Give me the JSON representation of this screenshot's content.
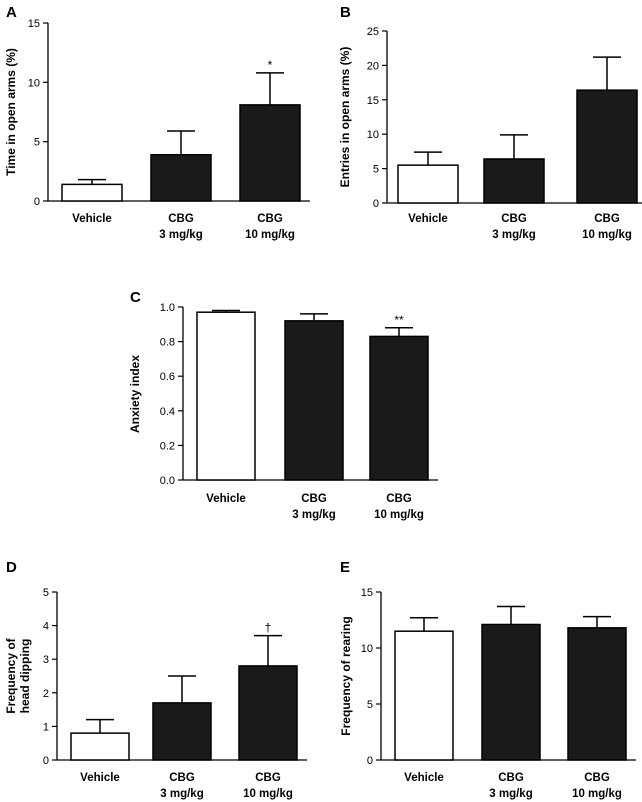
{
  "colors": {
    "filled": "#1a1a1a",
    "open": "#ffffff",
    "stroke": "#000000"
  },
  "chart_data": [
    {
      "panel_label": "A",
      "type": "bar",
      "title": "",
      "xlabel": "",
      "ylabel": "Time in open arms (%)",
      "categories": [
        [
          "Vehicle"
        ],
        [
          "CBG",
          "3 mg/kg"
        ],
        [
          "CBG",
          "10 mg/kg"
        ]
      ],
      "values": [
        1.4,
        3.9,
        8.1
      ],
      "errors": [
        0.4,
        2.0,
        2.7
      ],
      "fills": [
        "open",
        "filled",
        "filled"
      ],
      "annotations": [
        "",
        "",
        "*"
      ],
      "ylim": [
        0,
        15
      ],
      "yticks": [
        "0",
        "5",
        "10",
        "15"
      ],
      "ytick_values": [
        0,
        5,
        10,
        15
      ]
    },
    {
      "panel_label": "B",
      "type": "bar",
      "title": "",
      "xlabel": "",
      "ylabel": "Entries in open arms (%)",
      "categories": [
        [
          "Vehicle"
        ],
        [
          "CBG",
          "3 mg/kg"
        ],
        [
          "CBG",
          "10 mg/kg"
        ]
      ],
      "values": [
        5.5,
        6.4,
        16.4
      ],
      "errors": [
        1.9,
        3.5,
        4.8
      ],
      "fills": [
        "open",
        "filled",
        "filled"
      ],
      "annotations": [
        "",
        "",
        ""
      ],
      "ylim": [
        0,
        25
      ],
      "yticks": [
        "0",
        "5",
        "10",
        "15",
        "20",
        "25"
      ],
      "ytick_values": [
        0,
        5,
        10,
        15,
        20,
        25
      ]
    },
    {
      "panel_label": "C",
      "type": "bar",
      "title": "",
      "xlabel": "",
      "ylabel": "Anxiety index",
      "categories": [
        [
          "Vehicle"
        ],
        [
          "CBG",
          "3 mg/kg"
        ],
        [
          "CBG",
          "10 mg/kg"
        ]
      ],
      "values": [
        0.97,
        0.92,
        0.83
      ],
      "errors": [
        0.01,
        0.04,
        0.05
      ],
      "fills": [
        "open",
        "filled",
        "filled"
      ],
      "annotations": [
        "",
        "",
        "**"
      ],
      "ylim": [
        0,
        1.0
      ],
      "yticks": [
        "0.0",
        "0.2",
        "0.4",
        "0.6",
        "0.8",
        "1.0"
      ],
      "ytick_values": [
        0,
        0.2,
        0.4,
        0.6,
        0.8,
        1.0
      ]
    },
    {
      "panel_label": "D",
      "type": "bar",
      "title": "",
      "xlabel": "",
      "ylabel": [
        "Frequency of",
        "head dipping"
      ],
      "categories": [
        [
          "Vehicle"
        ],
        [
          "CBG",
          "3 mg/kg"
        ],
        [
          "CBG",
          "10 mg/kg"
        ]
      ],
      "values": [
        0.8,
        1.7,
        2.8
      ],
      "errors": [
        0.4,
        0.8,
        0.9
      ],
      "fills": [
        "open",
        "filled",
        "filled"
      ],
      "annotations": [
        "",
        "",
        "†"
      ],
      "ylim": [
        0,
        5
      ],
      "yticks": [
        "0",
        "1",
        "2",
        "3",
        "4",
        "5"
      ],
      "ytick_values": [
        0,
        1,
        2,
        3,
        4,
        5
      ]
    },
    {
      "panel_label": "E",
      "type": "bar",
      "title": "",
      "xlabel": "",
      "ylabel": "Frequency of rearing",
      "categories": [
        [
          "Vehicle"
        ],
        [
          "CBG",
          "3 mg/kg"
        ],
        [
          "CBG",
          "10 mg/kg"
        ]
      ],
      "values": [
        11.5,
        12.1,
        11.8
      ],
      "errors": [
        1.2,
        1.6,
        1.0
      ],
      "fills": [
        "open",
        "filled",
        "filled"
      ],
      "annotations": [
        "",
        "",
        ""
      ],
      "ylim": [
        0,
        15
      ],
      "yticks": [
        "0",
        "5",
        "10",
        "15"
      ],
      "ytick_values": [
        0,
        5,
        10,
        15
      ]
    }
  ]
}
